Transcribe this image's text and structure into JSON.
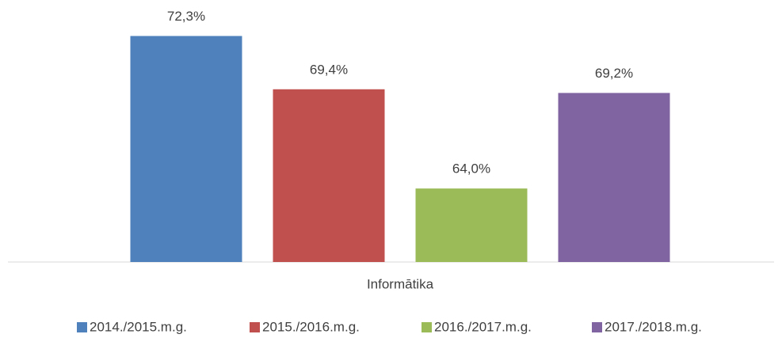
{
  "chart_data": {
    "type": "bar",
    "categories": [
      "Informātika"
    ],
    "series": [
      {
        "name": "2014./2015.m.g.",
        "color": "#4f81bd",
        "values": [
          72.3
        ],
        "value_labels": [
          "72,3%"
        ]
      },
      {
        "name": "2015./2016.m.g.",
        "color": "#c0504d",
        "values": [
          69.4
        ],
        "value_labels": [
          "69,4%"
        ]
      },
      {
        "name": "2016./2017.m.g.",
        "color": "#9bbb59",
        "values": [
          64.0
        ],
        "value_labels": [
          "64,0%"
        ]
      },
      {
        "name": "2017./2018.m.g.",
        "color": "#8064a2",
        "values": [
          69.2
        ],
        "value_labels": [
          "69,2%"
        ]
      }
    ],
    "ylim": [
      60,
      74
    ],
    "legend": "bottom"
  }
}
